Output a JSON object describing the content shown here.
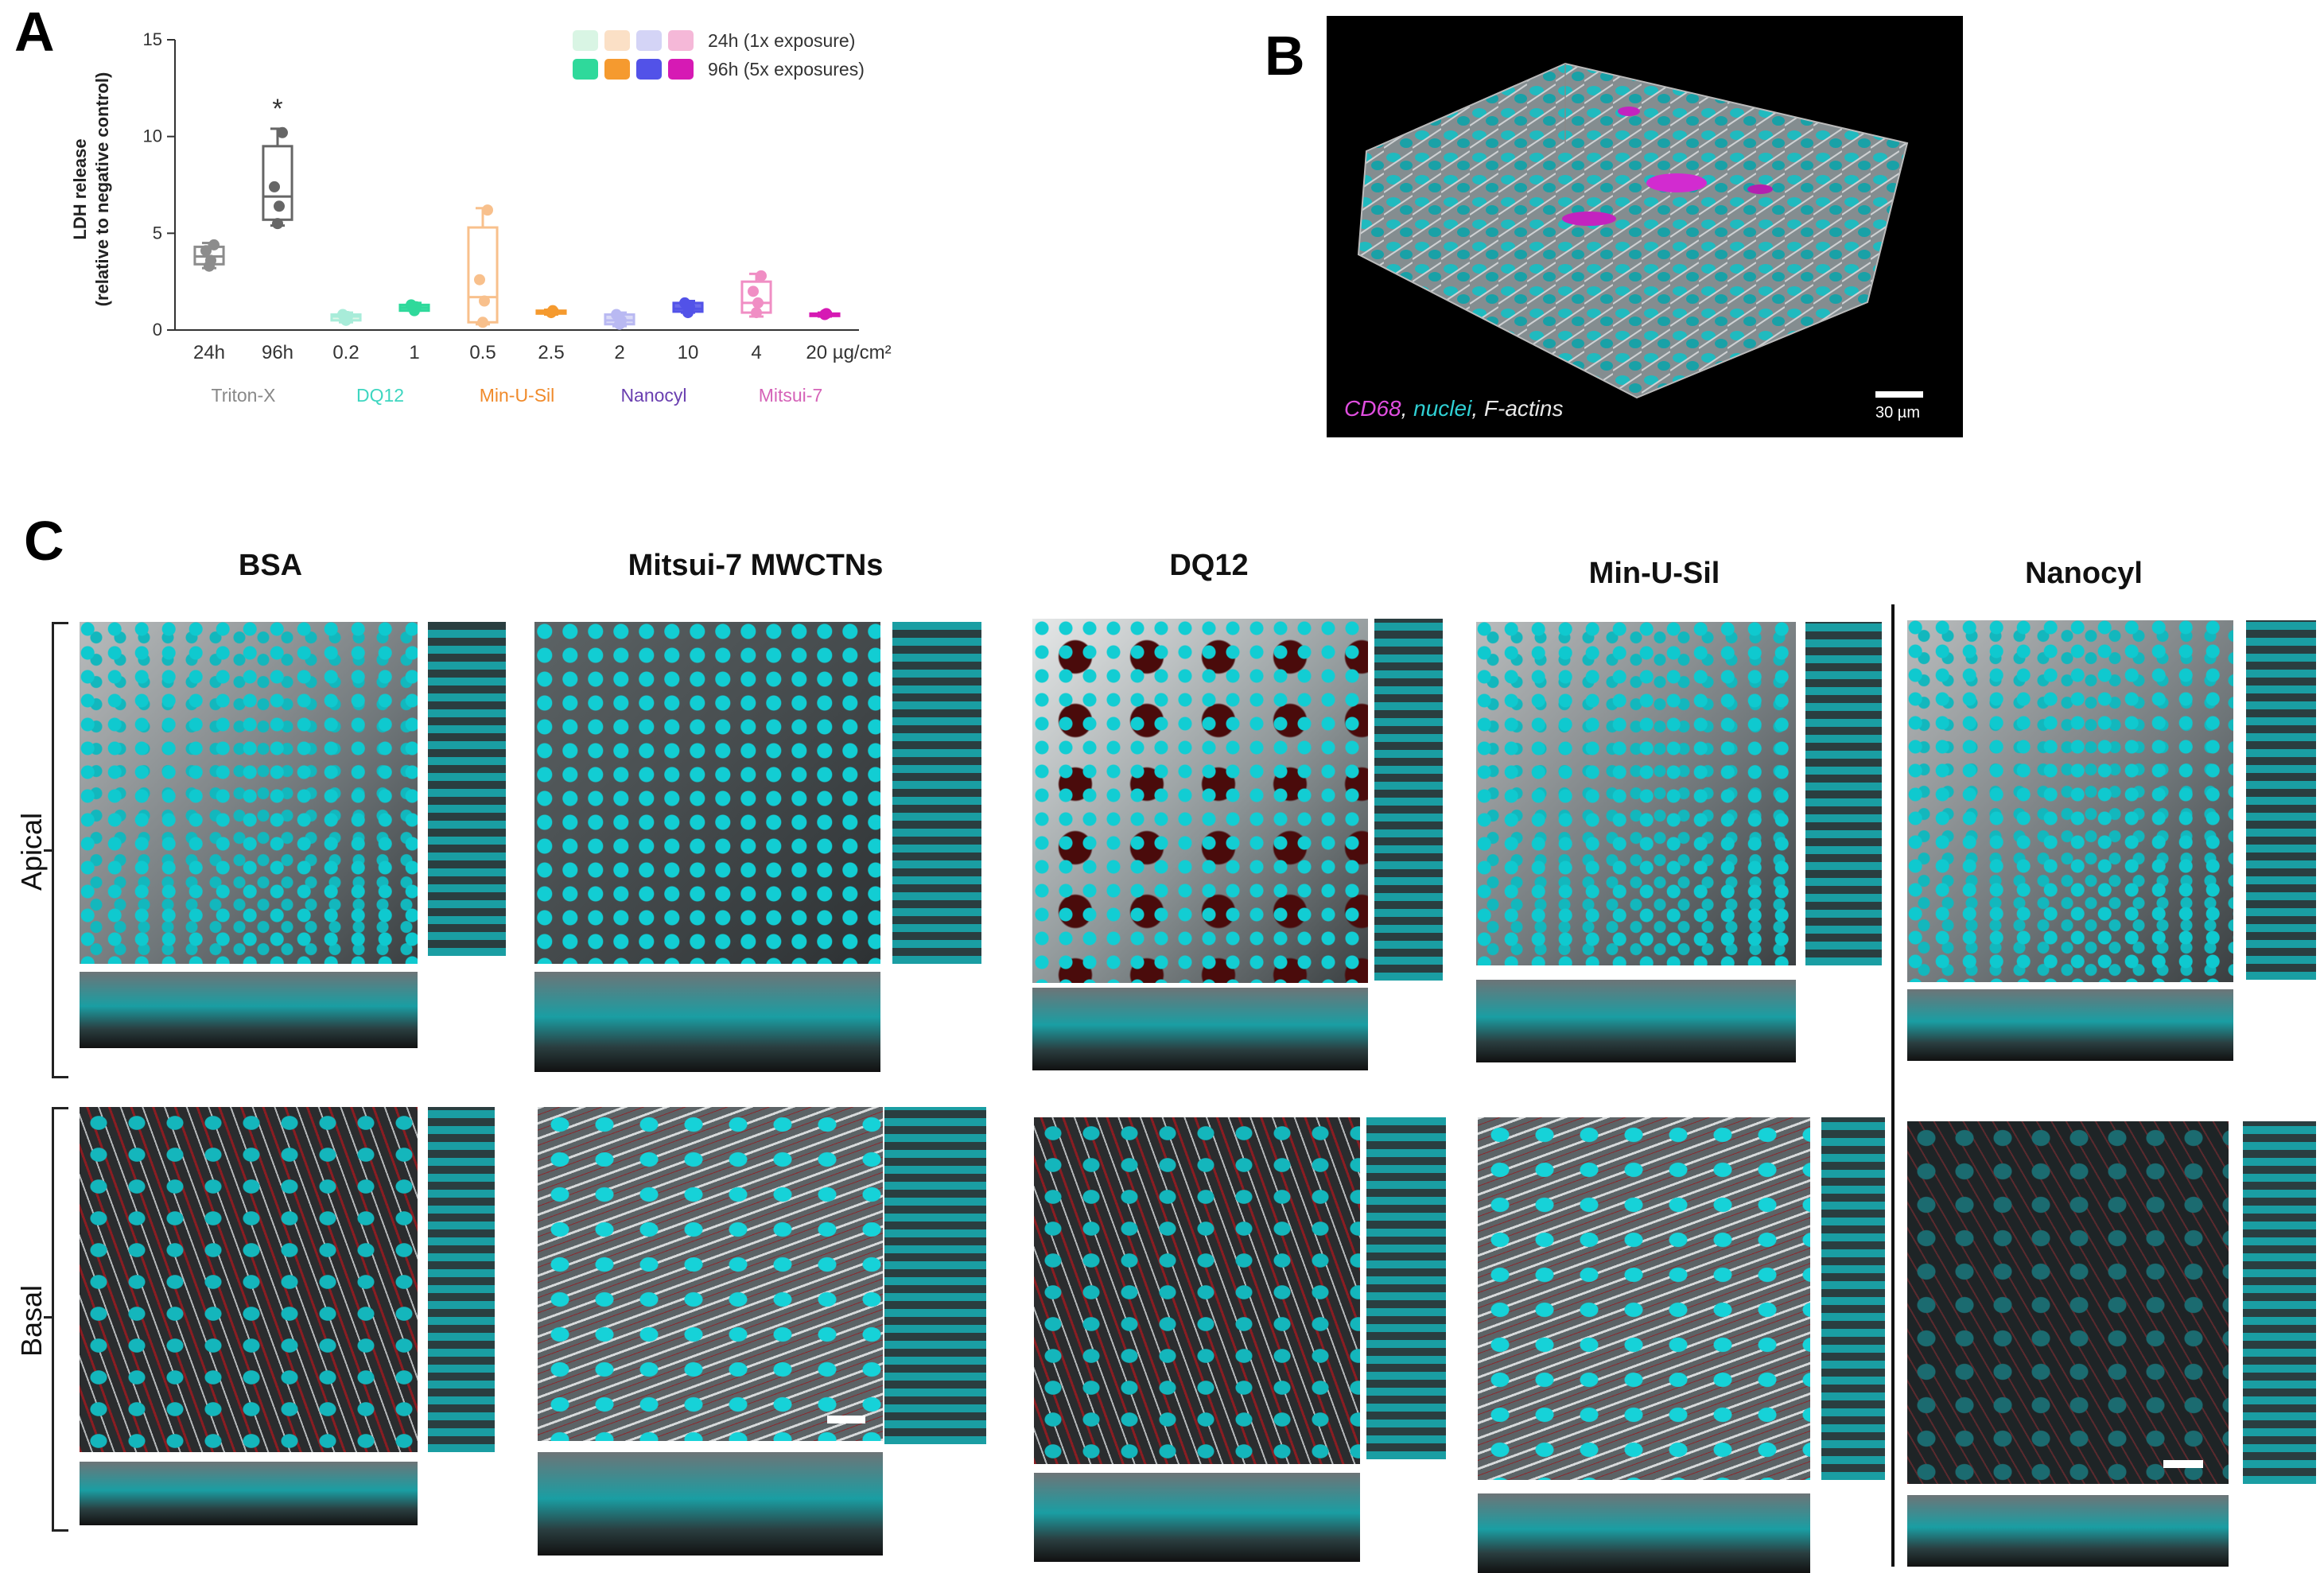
{
  "panels": {
    "A": "A",
    "B": "B",
    "C": "C"
  },
  "chart_data": {
    "type": "box",
    "ylabel_line1": "LDH release",
    "ylabel_line2": "(relative to negative control)",
    "ylim": [
      0,
      15
    ],
    "yticks": [
      0,
      5,
      10,
      15
    ],
    "grid": false,
    "legend_position": "top-right",
    "legend": [
      {
        "label": "24h (1x exposure)",
        "colors": [
          "#d9f5e4",
          "#fbe0c6",
          "#d4d4f6",
          "#f5b8d8"
        ]
      },
      {
        "label": "96h (5x exposures)",
        "colors": [
          "#2fd99b",
          "#f59a2f",
          "#5252e8",
          "#d61ab4"
        ]
      }
    ],
    "categories": [
      "24h",
      "96h",
      "0.2",
      "1",
      "0.5",
      "2.5",
      "2",
      "10",
      "4",
      "20 µg/cm²"
    ],
    "groups": [
      {
        "name": "Triton-X",
        "color": "#888888",
        "span": [
          0,
          1
        ]
      },
      {
        "name": "DQ12",
        "color": "#3dd6c0",
        "span": [
          2,
          3
        ]
      },
      {
        "name": "Min-U-Sil",
        "color": "#f08a2a",
        "span": [
          4,
          5
        ]
      },
      {
        "name": "Nanocyl",
        "color": "#6a3fb0",
        "span": [
          6,
          7
        ]
      },
      {
        "name": "Mitsui-7",
        "color": "#d563b8",
        "span": [
          8,
          9
        ]
      }
    ],
    "boxes": [
      {
        "category": "24h",
        "min": 3.2,
        "q1": 3.4,
        "median": 3.8,
        "q3": 4.3,
        "max": 4.5,
        "points": [
          3.3,
          3.6,
          4.1,
          4.4
        ],
        "color": "#8c8c8c",
        "fill": "none"
      },
      {
        "category": "96h",
        "min": 5.4,
        "q1": 5.7,
        "median": 6.9,
        "q3": 9.5,
        "max": 10.4,
        "points": [
          5.5,
          6.4,
          7.4,
          10.2
        ],
        "color": "#666666",
        "fill": "none",
        "annotation": "*"
      },
      {
        "category": "0.2",
        "min": 0.4,
        "q1": 0.5,
        "median": 0.7,
        "q3": 0.8,
        "max": 0.9,
        "points": [
          0.5,
          0.7,
          0.8
        ],
        "color": "#a8ecd9",
        "fill": "#d9f5e4"
      },
      {
        "category": "1",
        "min": 1.0,
        "q1": 1.0,
        "median": 1.15,
        "q3": 1.3,
        "max": 1.4,
        "points": [
          1.0,
          1.2,
          1.3
        ],
        "color": "#2fd99b",
        "fill": "#2fd99b"
      },
      {
        "category": "0.5",
        "min": 0.3,
        "q1": 0.4,
        "median": 1.7,
        "q3": 5.3,
        "max": 6.3,
        "points": [
          0.4,
          1.5,
          2.6,
          6.2
        ],
        "color": "#f8c08c",
        "fill": "none"
      },
      {
        "category": "2.5",
        "min": 0.8,
        "q1": 0.85,
        "median": 0.95,
        "q3": 1.0,
        "max": 1.05,
        "points": [
          0.9,
          1.0
        ],
        "color": "#f59a2f",
        "fill": "#f59a2f"
      },
      {
        "category": "2",
        "min": 0.2,
        "q1": 0.3,
        "median": 0.5,
        "q3": 0.8,
        "max": 0.9,
        "points": [
          0.3,
          0.5,
          0.8
        ],
        "color": "#b9b9f2",
        "fill": "#d4d4f6"
      },
      {
        "category": "10",
        "min": 0.9,
        "q1": 0.95,
        "median": 1.1,
        "q3": 1.4,
        "max": 1.5,
        "points": [
          0.9,
          1.2,
          1.4
        ],
        "color": "#5252e8",
        "fill": "#5252e8"
      },
      {
        "category": "4",
        "min": 0.7,
        "q1": 0.9,
        "median": 1.4,
        "q3": 2.5,
        "max": 2.9,
        "points": [
          0.9,
          1.4,
          2.0,
          2.8
        ],
        "color": "#f08ec4",
        "fill": "none"
      },
      {
        "category": "20 µg/cm²",
        "min": 0.7,
        "q1": 0.75,
        "median": 0.8,
        "q3": 0.85,
        "max": 0.9,
        "points": [
          0.8,
          0.85
        ],
        "color": "#d61ab4",
        "fill": "#d61ab4"
      }
    ]
  },
  "panel_b": {
    "legend_cd68": "CD68",
    "legend_nuclei": "nuclei",
    "legend_factins": "F-actins",
    "scale_label": "30 µm"
  },
  "panel_c": {
    "columns": [
      "BSA",
      "Mitsui-7 MWCTNs",
      "DQ12",
      "Min-U-Sil",
      "Nanocyl"
    ],
    "rows": [
      "Apical",
      "Basal"
    ]
  }
}
